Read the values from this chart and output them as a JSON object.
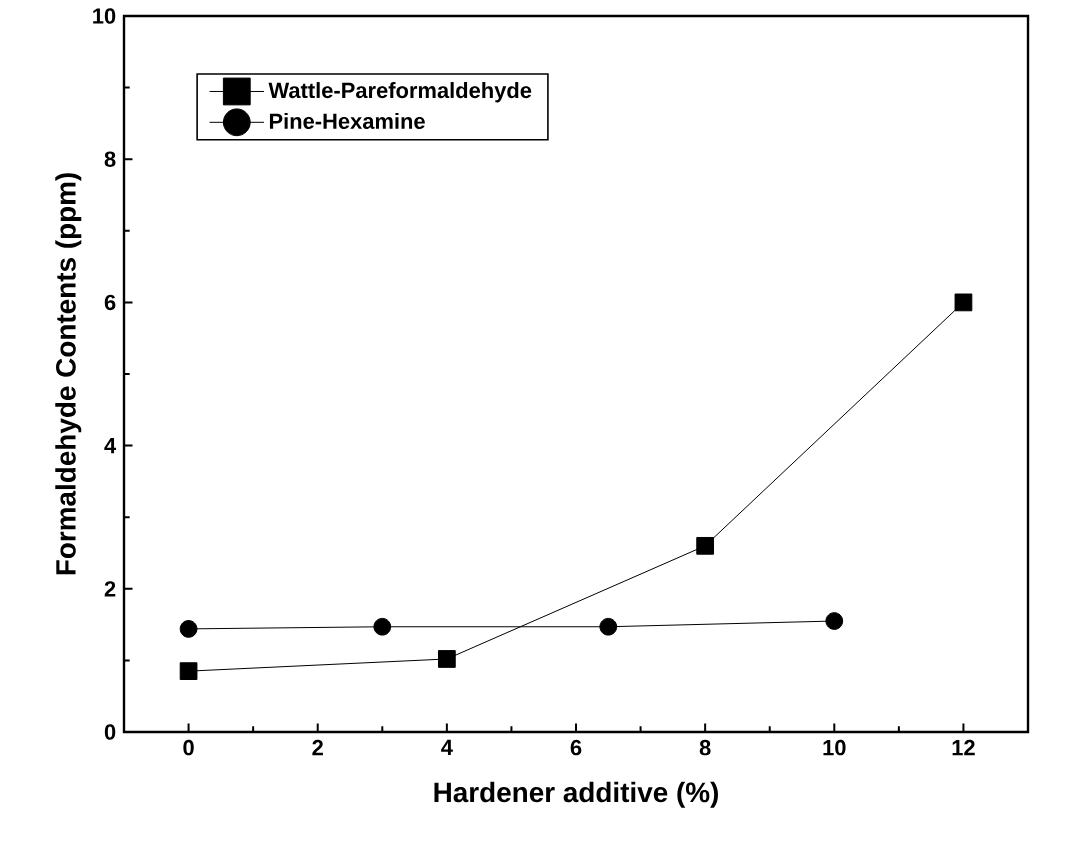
{
  "chart_data": {
    "type": "line",
    "xlabel": "Hardener additive (%)",
    "ylabel": "Formaldehyde Contents (ppm)",
    "xlim": [
      -1,
      13
    ],
    "ylim": [
      0,
      10
    ],
    "xticks": [
      0,
      2,
      4,
      6,
      8,
      10,
      12
    ],
    "yticks": [
      0,
      2,
      4,
      6,
      8,
      10
    ],
    "legend": "top left",
    "line_style": "solid",
    "series": [
      {
        "name": "Wattle-Pareformaldehyde",
        "color": "#000000",
        "marker": "square",
        "x": [
          0,
          4,
          8,
          12
        ],
        "values": [
          0.85,
          1.02,
          2.6,
          6.0
        ]
      },
      {
        "name": "Pine-Hexamine",
        "color": "#000000",
        "marker": "circle",
        "x": [
          0,
          3,
          6.5,
          10
        ],
        "values": [
          1.44,
          1.47,
          1.47,
          1.55
        ]
      }
    ]
  }
}
